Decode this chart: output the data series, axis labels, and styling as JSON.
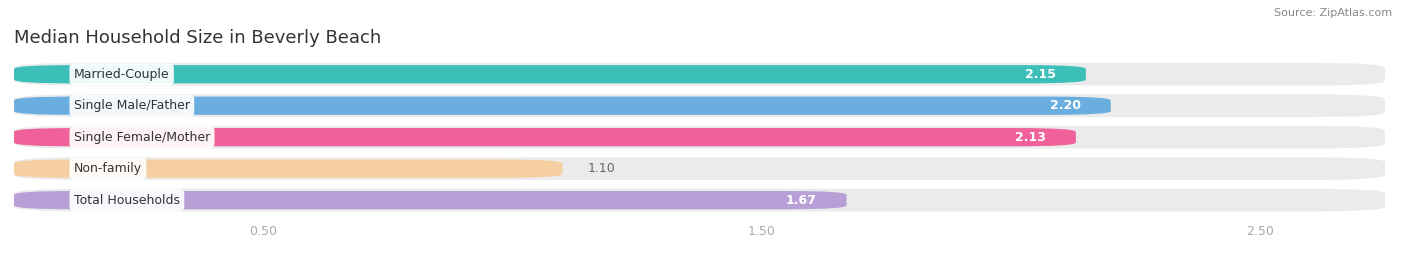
{
  "title": "Median Household Size in Beverly Beach",
  "source": "Source: ZipAtlas.com",
  "categories": [
    "Married-Couple",
    "Single Male/Father",
    "Single Female/Mother",
    "Non-family",
    "Total Households"
  ],
  "values": [
    2.15,
    2.2,
    2.13,
    1.1,
    1.67
  ],
  "bar_colors": [
    "#3bbfb8",
    "#6aaee0",
    "#f0609a",
    "#f5cfa0",
    "#b8a0d6"
  ],
  "label_text_colors": [
    "#555555",
    "#555555",
    "#555555",
    "#9a7a40",
    "#555555"
  ],
  "background_color": "#ffffff",
  "bar_background_color": "#ebebeb",
  "xlim_max": 2.75,
  "xticks": [
    0.5,
    1.5,
    2.5
  ],
  "title_fontsize": 13,
  "label_fontsize": 9,
  "value_fontsize": 9,
  "figsize": [
    14.06,
    2.69
  ],
  "dpi": 100
}
